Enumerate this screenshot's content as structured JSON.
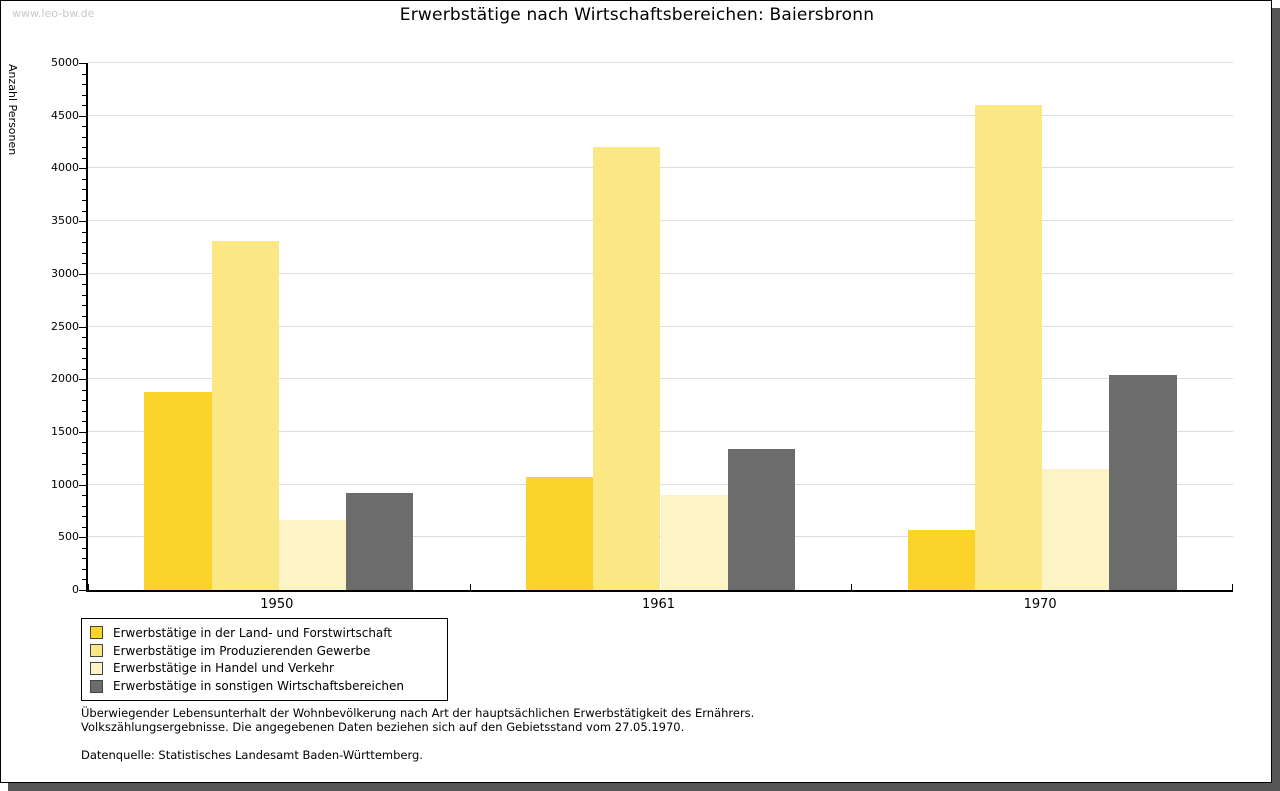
{
  "watermark": "www.leo-bw.de",
  "title": "Erwerbstätige nach Wirtschaftsbereichen: Baiersbronn",
  "chart_data": {
    "type": "bar",
    "title": "Erwerbstätige nach Wirtschaftsbereichen: Baiersbronn",
    "xlabel": "",
    "ylabel": "Anzahl Personen",
    "ylim": [
      0,
      5000
    ],
    "yticks": [
      0,
      500,
      1000,
      1500,
      2000,
      2500,
      3000,
      3500,
      4000,
      4500,
      5000
    ],
    "minor_tick_step": 100,
    "grid": true,
    "legend_position": "bottom-left",
    "categories": [
      "1950",
      "1961",
      "1970"
    ],
    "series": [
      {
        "name": "Erwerbstätige in der Land- und Forstwirtschaft",
        "color": "#FCD32B",
        "values": [
          1880,
          1070,
          570
        ]
      },
      {
        "name": "Erwerbstätige im Produzierenden Gewerbe",
        "color": "#FBE884",
        "values": [
          3310,
          4200,
          4600
        ]
      },
      {
        "name": "Erwerbstätige in Handel und Verkehr",
        "color": "#FCF4C4",
        "values": [
          660,
          900,
          1150
        ]
      },
      {
        "name": "Erwerbstätige in sonstigen Wirtschaftsbereichen",
        "color": "#6C6C6C",
        "values": [
          920,
          1340,
          2040
        ]
      }
    ]
  },
  "footer": {
    "line1": "Überwiegender Lebensunterhalt der Wohnbevölkerung nach Art der hauptsächlichen Erwerbstätigkeit des Ernährers.",
    "line2": "Volkszählungsergebnisse. Die angegebenen Daten beziehen sich auf den Gebietsstand vom 27.05.1970.",
    "source": "Datenquelle: Statistisches Landesamt Baden-Württemberg."
  }
}
